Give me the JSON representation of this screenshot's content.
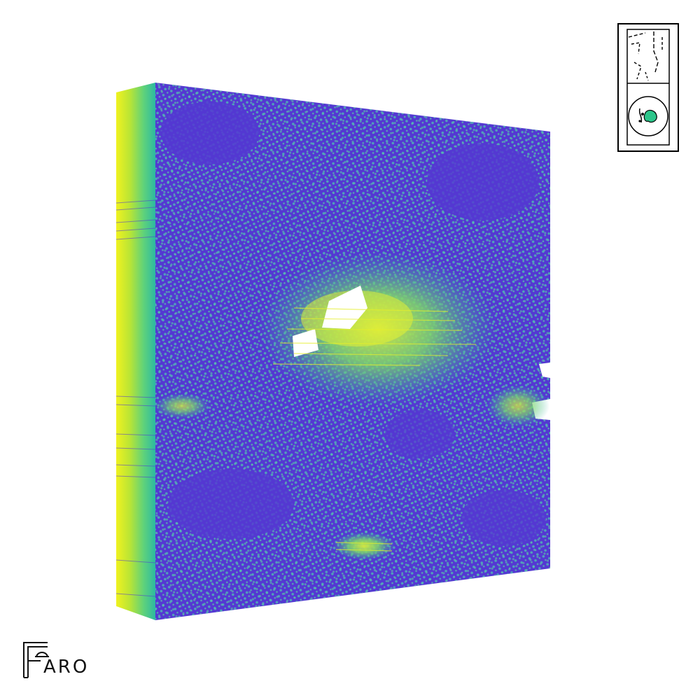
{
  "viewer": {
    "colormap": [
      "#fde725",
      "#5ec962",
      "#21918c",
      "#3b528b",
      "#5438d2"
    ],
    "base_color": "#5438d2",
    "side_colors": [
      "#e6ef2a",
      "#c3e82c",
      "#7fd86a",
      "#3cc58a",
      "#2cb6a0"
    ],
    "highlight_color": "#ffffff"
  },
  "view_cube": {
    "border_color": "#000000",
    "accent_color": "#2cc58a",
    "icons": [
      "top-face-icon",
      "front-face-icon"
    ]
  },
  "logo": {
    "text": "ARO",
    "initial": "F"
  }
}
